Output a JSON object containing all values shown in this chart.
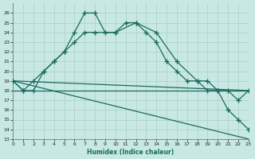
{
  "xlabel": "Humidex (Indice chaleur)",
  "xlim": [
    0,
    23
  ],
  "ylim": [
    13,
    27
  ],
  "ytick_vals": [
    13,
    14,
    15,
    16,
    17,
    18,
    19,
    20,
    21,
    22,
    23,
    24,
    25,
    26
  ],
  "xtick_vals": [
    0,
    1,
    2,
    3,
    4,
    5,
    6,
    7,
    8,
    9,
    10,
    11,
    12,
    13,
    14,
    15,
    16,
    17,
    18,
    19,
    20,
    21,
    22,
    23
  ],
  "bg_color": "#c8e8e4",
  "grid_color": "#aacfca",
  "line_color": "#1a6b5a",
  "curve1_x": [
    0,
    1,
    2,
    3,
    4,
    5,
    6,
    7,
    8,
    9,
    10,
    11,
    12,
    13,
    14,
    15,
    16,
    17,
    18,
    19,
    20,
    21,
    22,
    23
  ],
  "curve1_y": [
    19,
    18,
    18,
    20,
    21,
    22,
    24,
    26,
    26,
    24,
    24,
    25,
    25,
    24,
    23,
    21,
    20,
    19,
    19,
    18,
    18,
    16,
    15,
    14
  ],
  "curve2_x": [
    0,
    1,
    2,
    3,
    4,
    5,
    6,
    7,
    8,
    10,
    12,
    14,
    16,
    18,
    19,
    20,
    21,
    22,
    23
  ],
  "curve2_y": [
    19,
    18,
    19,
    20,
    21,
    22,
    23,
    24,
    24,
    24,
    25,
    24,
    21,
    19,
    19,
    18,
    18,
    17,
    18
  ],
  "line1_x": [
    0,
    23
  ],
  "line1_y": [
    19,
    18
  ],
  "line2_x": [
    0,
    23
  ],
  "line2_y": [
    19,
    13
  ],
  "line3_x": [
    0,
    23
  ],
  "line3_y": [
    18,
    18
  ]
}
